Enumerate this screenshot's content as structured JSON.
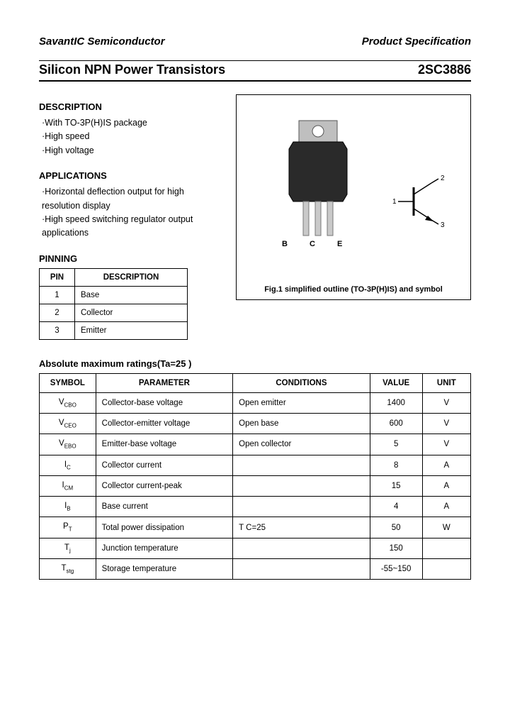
{
  "header": {
    "company": "SavantIC Semiconductor",
    "spec": "Product Specification"
  },
  "title": {
    "left": "Silicon NPN Power Transistors",
    "right": "2SC3886"
  },
  "description": {
    "heading": "DESCRIPTION",
    "items": [
      "·With TO-3P(H)IS package",
      "·High speed",
      "·High voltage"
    ]
  },
  "applications": {
    "heading": "APPLICATIONS",
    "items": [
      "·Horizontal deflection output for high resolution display",
      "·High speed switching regulator output applications"
    ]
  },
  "pinning": {
    "heading": "PINNING",
    "cols": [
      "PIN",
      "DESCRIPTION"
    ],
    "rows": [
      [
        "1",
        "Base"
      ],
      [
        "2",
        "Collector"
      ],
      [
        "3",
        "Emitter"
      ]
    ]
  },
  "figure": {
    "pin_letters": "B  C  E",
    "caption": "Fig.1 simplified outline (TO-3P(H)IS) and symbol",
    "sym_labels": {
      "c": "2",
      "b": "1",
      "e": "3"
    }
  },
  "ratings": {
    "heading": "Absolute maximum ratings(Ta=25   )",
    "cols": [
      "SYMBOL",
      "PARAMETER",
      "CONDITIONS",
      "VALUE",
      "UNIT"
    ],
    "col_widths": [
      "70px",
      "170px",
      "170px",
      "65px",
      "60px"
    ],
    "rows": [
      {
        "sym": "V",
        "sub": "CBO",
        "param": "Collector-base voltage",
        "cond": "Open emitter",
        "val": "1400",
        "unit": "V"
      },
      {
        "sym": "V",
        "sub": "CEO",
        "param": "Collector-emitter voltage",
        "cond": "Open base",
        "val": "600",
        "unit": "V"
      },
      {
        "sym": "V",
        "sub": "EBO",
        "param": "Emitter-base voltage",
        "cond": "Open collector",
        "val": "5",
        "unit": "V"
      },
      {
        "sym": "I",
        "sub": "C",
        "param": "Collector current",
        "cond": "",
        "val": "8",
        "unit": "A"
      },
      {
        "sym": "I",
        "sub": "CM",
        "param": "Collector current-peak",
        "cond": "",
        "val": "15",
        "unit": "A"
      },
      {
        "sym": "I",
        "sub": "B",
        "param": "Base current",
        "cond": "",
        "val": "4",
        "unit": "A"
      },
      {
        "sym": "P",
        "sub": "T",
        "param": "Total power dissipation",
        "cond": "T C=25",
        "val": "50",
        "unit": "W"
      },
      {
        "sym": "T",
        "sub": "j",
        "param": "Junction temperature",
        "cond": "",
        "val": "150",
        "unit": ""
      },
      {
        "sym": "T",
        "sub": "stg",
        "param": "Storage temperature",
        "cond": "",
        "val": "-55~150",
        "unit": ""
      }
    ]
  },
  "colors": {
    "text": "#000000",
    "bg": "#ffffff",
    "pkg_body": "#2a2a2a",
    "pkg_tab": "#bfbfbf",
    "lead": "#c9c9c9"
  }
}
